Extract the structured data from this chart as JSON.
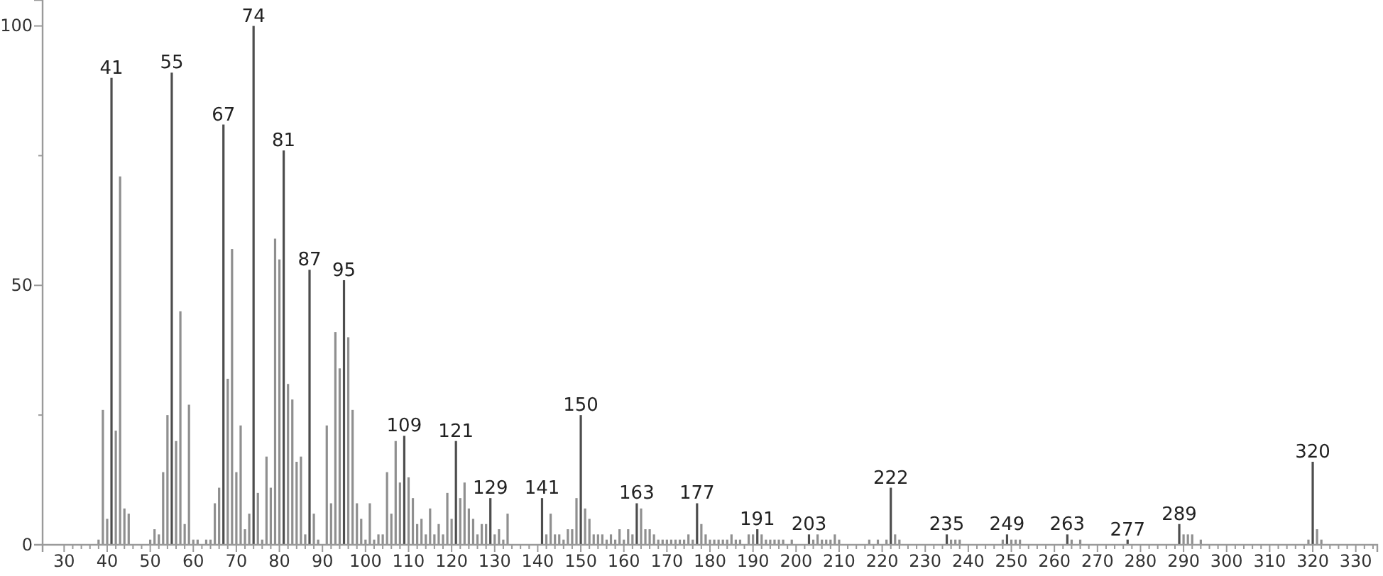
{
  "chart_data": {
    "type": "bar",
    "x": [
      38,
      39,
      40,
      41,
      42,
      43,
      44,
      45,
      50,
      51,
      52,
      53,
      54,
      55,
      56,
      57,
      58,
      59,
      60,
      61,
      63,
      64,
      65,
      66,
      67,
      68,
      69,
      70,
      71,
      72,
      73,
      74,
      75,
      76,
      77,
      78,
      79,
      80,
      81,
      82,
      83,
      84,
      85,
      86,
      87,
      88,
      89,
      91,
      92,
      93,
      94,
      95,
      96,
      97,
      98,
      99,
      100,
      101,
      102,
      103,
      104,
      105,
      106,
      107,
      108,
      109,
      110,
      111,
      112,
      113,
      114,
      115,
      116,
      117,
      118,
      119,
      120,
      121,
      122,
      123,
      124,
      125,
      126,
      127,
      128,
      129,
      130,
      131,
      132,
      133,
      141,
      142,
      143,
      144,
      145,
      146,
      147,
      148,
      149,
      150,
      151,
      152,
      153,
      154,
      155,
      156,
      157,
      158,
      159,
      160,
      161,
      162,
      163,
      164,
      165,
      166,
      167,
      168,
      169,
      170,
      171,
      172,
      173,
      174,
      175,
      176,
      177,
      178,
      179,
      180,
      181,
      182,
      183,
      184,
      185,
      186,
      187,
      189,
      190,
      191,
      192,
      193,
      194,
      195,
      196,
      197,
      199,
      203,
      204,
      205,
      206,
      207,
      208,
      209,
      210,
      217,
      219,
      221,
      222,
      223,
      224,
      235,
      236,
      237,
      238,
      248,
      249,
      250,
      251,
      252,
      263,
      264,
      266,
      277,
      289,
      290,
      291,
      292,
      294,
      319,
      320,
      321,
      322
    ],
    "values": [
      1,
      26,
      5,
      90,
      22,
      71,
      7,
      6,
      1,
      3,
      2,
      14,
      25,
      91,
      20,
      45,
      4,
      27,
      1,
      1,
      1,
      1,
      8,
      11,
      81,
      32,
      57,
      14,
      23,
      3,
      6,
      100,
      10,
      1,
      17,
      11,
      59,
      55,
      76,
      31,
      28,
      16,
      17,
      2,
      53,
      6,
      1,
      23,
      8,
      41,
      34,
      51,
      40,
      26,
      8,
      5,
      1,
      8,
      1,
      2,
      2,
      14,
      6,
      20,
      12,
      21,
      13,
      9,
      4,
      5,
      2,
      7,
      2,
      4,
      2,
      10,
      5,
      20,
      9,
      12,
      7,
      5,
      2,
      4,
      4,
      9,
      2,
      3,
      1,
      6,
      9,
      2,
      6,
      2,
      2,
      1,
      3,
      3,
      9,
      25,
      7,
      5,
      2,
      2,
      2,
      1,
      2,
      1,
      3,
      1,
      3,
      2,
      8,
      7,
      3,
      3,
      2,
      1,
      1,
      1,
      1,
      1,
      1,
      1,
      2,
      1,
      8,
      4,
      2,
      1,
      1,
      1,
      1,
      1,
      2,
      1,
      1,
      2,
      2,
      3,
      2,
      1,
      1,
      1,
      1,
      1,
      1,
      2,
      1,
      2,
      1,
      1,
      1,
      2,
      1,
      1,
      1,
      1,
      11,
      2,
      1,
      2,
      1,
      1,
      1,
      1,
      2,
      1,
      1,
      1,
      2,
      1,
      1,
      1,
      4,
      2,
      2,
      2,
      1,
      1,
      16,
      3,
      1
    ],
    "colors": [
      "#8f8f8f",
      "#8f8f8f",
      "#8f8f8f",
      "#4d4d4d",
      "#8f8f8f",
      "#8f8f8f",
      "#8f8f8f",
      "#8f8f8f",
      "#8f8f8f",
      "#8f8f8f",
      "#8f8f8f",
      "#8f8f8f",
      "#8f8f8f",
      "#4d4d4d",
      "#8f8f8f",
      "#8f8f8f",
      "#8f8f8f",
      "#8f8f8f",
      "#8f8f8f",
      "#8f8f8f",
      "#8f8f8f",
      "#8f8f8f",
      "#8f8f8f",
      "#8f8f8f",
      "#4d4d4d",
      "#8f8f8f",
      "#8f8f8f",
      "#8f8f8f",
      "#8f8f8f",
      "#8f8f8f",
      "#8f8f8f",
      "#4d4d4d",
      "#8f8f8f",
      "#8f8f8f",
      "#8f8f8f",
      "#8f8f8f",
      "#8f8f8f",
      "#8f8f8f",
      "#4d4d4d",
      "#8f8f8f",
      "#8f8f8f",
      "#8f8f8f",
      "#8f8f8f",
      "#8f8f8f",
      "#4d4d4d",
      "#8f8f8f",
      "#8f8f8f",
      "#8f8f8f",
      "#8f8f8f",
      "#8f8f8f",
      "#8f8f8f",
      "#4d4d4d",
      "#8f8f8f",
      "#8f8f8f",
      "#8f8f8f",
      "#8f8f8f",
      "#8f8f8f",
      "#8f8f8f",
      "#8f8f8f",
      "#8f8f8f",
      "#8f8f8f",
      "#8f8f8f",
      "#8f8f8f",
      "#8f8f8f",
      "#8f8f8f",
      "#4d4d4d",
      "#8f8f8f",
      "#8f8f8f",
      "#8f8f8f",
      "#8f8f8f",
      "#8f8f8f",
      "#8f8f8f",
      "#8f8f8f",
      "#8f8f8f",
      "#8f8f8f",
      "#8f8f8f",
      "#8f8f8f",
      "#4d4d4d",
      "#8f8f8f",
      "#8f8f8f",
      "#8f8f8f",
      "#8f8f8f",
      "#8f8f8f",
      "#8f8f8f",
      "#8f8f8f",
      "#4d4d4d",
      "#8f8f8f",
      "#8f8f8f",
      "#8f8f8f",
      "#8f8f8f",
      "#4d4d4d",
      "#8f8f8f",
      "#8f8f8f",
      "#8f8f8f",
      "#8f8f8f",
      "#8f8f8f",
      "#8f8f8f",
      "#8f8f8f",
      "#8f8f8f",
      "#4d4d4d",
      "#8f8f8f",
      "#8f8f8f",
      "#8f8f8f",
      "#8f8f8f",
      "#8f8f8f",
      "#8f8f8f",
      "#8f8f8f",
      "#8f8f8f",
      "#8f8f8f",
      "#8f8f8f",
      "#8f8f8f",
      "#8f8f8f",
      "#4d4d4d",
      "#8f8f8f",
      "#8f8f8f",
      "#8f8f8f",
      "#8f8f8f",
      "#8f8f8f",
      "#8f8f8f",
      "#8f8f8f",
      "#8f8f8f",
      "#8f8f8f",
      "#8f8f8f",
      "#8f8f8f",
      "#8f8f8f",
      "#8f8f8f",
      "#4d4d4d",
      "#8f8f8f",
      "#8f8f8f",
      "#8f8f8f",
      "#8f8f8f",
      "#8f8f8f",
      "#8f8f8f",
      "#8f8f8f",
      "#8f8f8f",
      "#8f8f8f",
      "#8f8f8f",
      "#8f8f8f",
      "#8f8f8f",
      "#4d4d4d",
      "#8f8f8f",
      "#8f8f8f",
      "#8f8f8f",
      "#8f8f8f",
      "#8f8f8f",
      "#8f8f8f",
      "#8f8f8f",
      "#4d4d4d",
      "#8f8f8f",
      "#8f8f8f",
      "#8f8f8f",
      "#8f8f8f",
      "#8f8f8f",
      "#8f8f8f",
      "#8f8f8f",
      "#8f8f8f",
      "#8f8f8f",
      "#8f8f8f",
      "#4d4d4d",
      "#8f8f8f",
      "#8f8f8f",
      "#4d4d4d",
      "#8f8f8f",
      "#8f8f8f",
      "#8f8f8f",
      "#8f8f8f",
      "#4d4d4d",
      "#8f8f8f",
      "#8f8f8f",
      "#8f8f8f",
      "#4d4d4d",
      "#8f8f8f",
      "#8f8f8f",
      "#4d4d4d",
      "#4d4d4d",
      "#8f8f8f",
      "#8f8f8f",
      "#8f8f8f",
      "#8f8f8f",
      "#8f8f8f",
      "#4d4d4d",
      "#8f8f8f",
      "#8f8f8f"
    ],
    "annotations": [
      {
        "text": "41",
        "x": 41,
        "y": 90
      },
      {
        "text": "55",
        "x": 55,
        "y": 91
      },
      {
        "text": "67",
        "x": 67,
        "y": 81
      },
      {
        "text": "74",
        "x": 74,
        "y": 100
      },
      {
        "text": "81",
        "x": 81,
        "y": 76
      },
      {
        "text": "87",
        "x": 87,
        "y": 53
      },
      {
        "text": "95",
        "x": 95,
        "y": 51
      },
      {
        "text": "109",
        "x": 109,
        "y": 21
      },
      {
        "text": "121",
        "x": 121,
        "y": 20
      },
      {
        "text": "129",
        "x": 129,
        "y": 9
      },
      {
        "text": "141",
        "x": 141,
        "y": 9
      },
      {
        "text": "150",
        "x": 150,
        "y": 25
      },
      {
        "text": "163",
        "x": 163,
        "y": 8
      },
      {
        "text": "177",
        "x": 177,
        "y": 8
      },
      {
        "text": "191",
        "x": 191,
        "y": 3
      },
      {
        "text": "203",
        "x": 203,
        "y": 2
      },
      {
        "text": "222",
        "x": 222,
        "y": 11
      },
      {
        "text": "235",
        "x": 235,
        "y": 2
      },
      {
        "text": "249",
        "x": 249,
        "y": 2
      },
      {
        "text": "263",
        "x": 263,
        "y": 2
      },
      {
        "text": "277",
        "x": 277,
        "y": 1
      },
      {
        "text": "289",
        "x": 289,
        "y": 4
      },
      {
        "text": "320",
        "x": 320,
        "y": 16
      }
    ],
    "xlim": [
      25,
      335
    ],
    "xticks": [
      30,
      {
        "value": 32,
        "label": null
      },
      {
        "value": 34,
        "label": null
      },
      {
        "value": 36,
        "label": null
      },
      {
        "value": 38,
        "label": null
      },
      40,
      {
        "value": 42,
        "label": null
      },
      {
        "value": 44,
        "label": null
      },
      {
        "value": 46,
        "label": null
      },
      {
        "value": 48,
        "label": null
      },
      50,
      {
        "value": 52,
        "label": null
      },
      {
        "value": 54,
        "label": null
      },
      {
        "value": 56,
        "label": null
      },
      {
        "value": 58,
        "label": null
      },
      60,
      {
        "value": 62,
        "label": null
      },
      {
        "value": 64,
        "label": null
      },
      {
        "value": 66,
        "label": null
      },
      {
        "value": 68,
        "label": null
      },
      70,
      {
        "value": 72,
        "label": null
      },
      {
        "value": 74,
        "label": null
      },
      {
        "value": 76,
        "label": null
      },
      {
        "value": 78,
        "label": null
      },
      80,
      {
        "value": 82,
        "label": null
      },
      {
        "value": 84,
        "label": null
      },
      {
        "value": 86,
        "label": null
      },
      {
        "value": 88,
        "label": null
      },
      90,
      {
        "value": 92,
        "label": null
      },
      {
        "value": 94,
        "label": null
      },
      {
        "value": 96,
        "label": null
      },
      {
        "value": 98,
        "label": null
      },
      100,
      {
        "value": 102,
        "label": null
      },
      {
        "value": 104,
        "label": null
      },
      {
        "value": 106,
        "label": null
      },
      {
        "value": 108,
        "label": null
      },
      110,
      {
        "value": 112,
        "label": null
      },
      {
        "value": 114,
        "label": null
      },
      {
        "value": 116,
        "label": null
      },
      {
        "value": 118,
        "label": null
      },
      120,
      {
        "value": 122,
        "label": null
      },
      {
        "value": 124,
        "label": null
      },
      {
        "value": 126,
        "label": null
      },
      {
        "value": 128,
        "label": null
      },
      130,
      {
        "value": 132,
        "label": null
      },
      {
        "value": 134,
        "label": null
      },
      {
        "value": 136,
        "label": null
      },
      {
        "value": 138,
        "label": null
      },
      140,
      {
        "value": 142,
        "label": null
      },
      {
        "value": 144,
        "label": null
      },
      {
        "value": 146,
        "label": null
      },
      {
        "value": 148,
        "label": null
      },
      150,
      {
        "value": 152,
        "label": null
      },
      {
        "value": 154,
        "label": null
      },
      {
        "value": 156,
        "label": null
      },
      {
        "value": 158,
        "label": null
      },
      160,
      {
        "value": 162,
        "label": null
      },
      {
        "value": 164,
        "label": null
      },
      {
        "value": 166,
        "label": null
      },
      {
        "value": 168,
        "label": null
      },
      170,
      {
        "value": 172,
        "label": null
      },
      {
        "value": 174,
        "label": null
      },
      {
        "value": 176,
        "label": null
      },
      {
        "value": 178,
        "label": null
      },
      180,
      {
        "value": 182,
        "label": null
      },
      {
        "value": 184,
        "label": null
      },
      {
        "value": 186,
        "label": null
      },
      {
        "value": 188,
        "label": null
      },
      190,
      {
        "value": 192,
        "label": null
      },
      {
        "value": 194,
        "label": null
      },
      {
        "value": 196,
        "label": null
      },
      {
        "value": 198,
        "label": null
      },
      200,
      {
        "value": 202,
        "label": null
      },
      {
        "value": 204,
        "label": null
      },
      {
        "value": 206,
        "label": null
      },
      {
        "value": 208,
        "label": null
      },
      210,
      {
        "value": 212,
        "label": null
      },
      {
        "value": 214,
        "label": null
      },
      {
        "value": 216,
        "label": null
      },
      {
        "value": 218,
        "label": null
      },
      220,
      {
        "value": 222,
        "label": null
      },
      {
        "value": 224,
        "label": null
      },
      {
        "value": 226,
        "label": null
      },
      {
        "value": 228,
        "label": null
      },
      230,
      {
        "value": 232,
        "label": null
      },
      {
        "value": 234,
        "label": null
      },
      {
        "value": 236,
        "label": null
      },
      {
        "value": 238,
        "label": null
      },
      240,
      {
        "value": 242,
        "label": null
      },
      {
        "value": 244,
        "label": null
      },
      {
        "value": 246,
        "label": null
      },
      {
        "value": 248,
        "label": null
      },
      250,
      {
        "value": 252,
        "label": null
      },
      {
        "value": 254,
        "label": null
      },
      {
        "value": 256,
        "label": null
      },
      {
        "value": 258,
        "label": null
      },
      260,
      {
        "value": 262,
        "label": null
      },
      {
        "value": 264,
        "label": null
      },
      {
        "value": 266,
        "label": null
      },
      {
        "value": 268,
        "label": null
      },
      270,
      {
        "value": 272,
        "label": null
      },
      {
        "value": 274,
        "label": null
      },
      {
        "value": 276,
        "label": null
      },
      {
        "value": 278,
        "label": null
      },
      280,
      {
        "value": 282,
        "label": null
      },
      {
        "value": 284,
        "label": null
      },
      {
        "value": 286,
        "label": null
      },
      {
        "value": 288,
        "label": null
      },
      290,
      {
        "value": 292,
        "label": null
      },
      {
        "value": 294,
        "label": null
      },
      {
        "value": 296,
        "label": null
      },
      {
        "value": 298,
        "label": null
      },
      300,
      {
        "value": 302,
        "label": null
      },
      {
        "value": 304,
        "label": null
      },
      {
        "value": 306,
        "label": null
      },
      {
        "value": 308,
        "label": null
      },
      310,
      {
        "value": 312,
        "label": null
      },
      {
        "value": 314,
        "label": null
      },
      {
        "value": 316,
        "label": null
      },
      {
        "value": 318,
        "label": null
      },
      320,
      {
        "value": 322,
        "label": null
      },
      {
        "value": 324,
        "label": null
      },
      {
        "value": 326,
        "label": null
      },
      {
        "value": 328,
        "label": null
      },
      330,
      {
        "value": 332,
        "label": null
      },
      {
        "value": 334,
        "label": null
      }
    ],
    "ylim": [
      0,
      105
    ],
    "yticks": [
      0,
      {
        "value": 25,
        "label": null
      },
      50,
      {
        "value": 75,
        "label": null
      },
      100
    ]
  }
}
